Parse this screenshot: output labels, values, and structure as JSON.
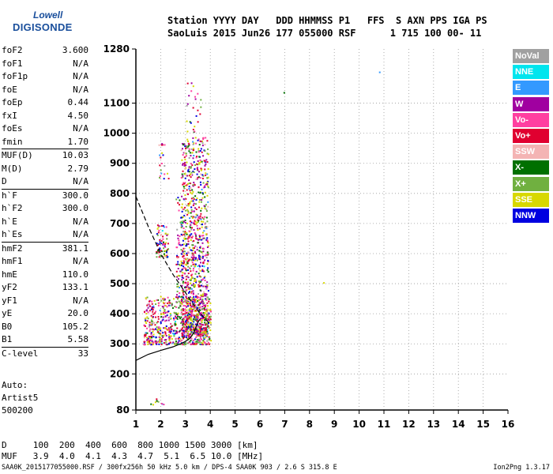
{
  "logo": {
    "line1": "Lowell",
    "line2": "DIGISONDE"
  },
  "header": {
    "line1": "Station YYYY DAY   DDD HHMMSS P1   FFS  S AXN PPS IGA PS",
    "line2": "SaoLuis 2015 Jun26 177 055000 RSF      1 715 100 00- 11"
  },
  "params": [
    {
      "label": "foF2",
      "value": "3.600"
    },
    {
      "label": "foF1",
      "value": "N/A"
    },
    {
      "label": "foF1p",
      "value": "N/A"
    },
    {
      "label": "foE",
      "value": "N/A"
    },
    {
      "label": "foEp",
      "value": "0.44"
    },
    {
      "label": "fxI",
      "value": "4.50"
    },
    {
      "label": "foEs",
      "value": "N/A"
    },
    {
      "label": "fmin",
      "value": "1.70"
    },
    {
      "label": "MUF(D)",
      "value": "10.03"
    },
    {
      "label": "M(D)",
      "value": "2.79"
    },
    {
      "label": "D",
      "value": "N/A"
    },
    {
      "label": "h`F",
      "value": "300.0"
    },
    {
      "label": "h`F2",
      "value": "300.0"
    },
    {
      "label": "h`E",
      "value": "N/A"
    },
    {
      "label": "h`Es",
      "value": "N/A"
    },
    {
      "label": "hmF2",
      "value": "381.1"
    },
    {
      "label": "hmF1",
      "value": "N/A"
    },
    {
      "label": "hmE",
      "value": "110.0"
    },
    {
      "label": "yF2",
      "value": "133.1"
    },
    {
      "label": "yF1",
      "value": "N/A"
    },
    {
      "label": "yE",
      "value": "20.0"
    },
    {
      "label": "B0",
      "value": "105.2"
    },
    {
      "label": "B1",
      "value": "5.58"
    },
    {
      "label": "C-level",
      "value": "33"
    }
  ],
  "auto": {
    "line1": "Auto:",
    "line2": "Artist5",
    "line3": "500200"
  },
  "legend": [
    {
      "label": "NoVal",
      "color": "#a0a0a0"
    },
    {
      "label": "NNE",
      "color": "#00e5ee"
    },
    {
      "label": "E",
      "color": "#3399ff"
    },
    {
      "label": "W",
      "color": "#a000a0"
    },
    {
      "label": "Vo-",
      "color": "#ff3fa0"
    },
    {
      "label": "Vo+",
      "color": "#e00030"
    },
    {
      "label": "SSW",
      "color": "#f4b4b4"
    },
    {
      "label": "X-",
      "color": "#007000"
    },
    {
      "label": "X+",
      "color": "#70b040"
    },
    {
      "label": "SSE",
      "color": "#d8d800"
    },
    {
      "label": "NNW",
      "color": "#0000e0"
    }
  ],
  "mufblock": {
    "line1": "D     100  200  400  600  800 1000 1500 3000 [km]",
    "line2": "MUF   3.9  4.0  4.1  4.3  4.7  5.1  6.5 10.0 [MHz]"
  },
  "footer": "SAA0K_2015177055000.RSF / 300fx256h 50 kHz 5.0 km / DPS-4 SAA0K 903 / 2.6 S 315.8 E",
  "version": "Ion2Png 1.3.17",
  "chart_data": {
    "type": "scatter",
    "xlim": [
      1,
      16
    ],
    "ylim": [
      80,
      1280
    ],
    "x_ticks": [
      1,
      2,
      3,
      4,
      5,
      6,
      7,
      8,
      9,
      10,
      11,
      12,
      13,
      14,
      15,
      16
    ],
    "y_ticks": [
      80,
      200,
      300,
      400,
      500,
      600,
      700,
      800,
      900,
      1000,
      1100,
      1280
    ],
    "grid": true,
    "profile_curve": {
      "x": [
        1.0,
        1.5,
        2.0,
        2.5,
        2.8,
        3.0,
        3.2,
        3.35,
        3.45,
        3.52,
        3.58,
        3.6
      ],
      "y": [
        245,
        265,
        278,
        290,
        300,
        308,
        320,
        340,
        362,
        375,
        381,
        381
      ]
    },
    "muf_curve": {
      "x": [
        1.0,
        1.5,
        2.0,
        2.5,
        3.0,
        3.5,
        4.0
      ],
      "y": [
        790,
        690,
        600,
        530,
        470,
        410,
        365
      ]
    },
    "scatter_clusters": [
      {
        "x": [
          1.3,
          4.0
        ],
        "y": [
          300,
          460
        ],
        "n": 700
      },
      {
        "x": [
          2.8,
          3.9
        ],
        "y": [
          330,
          990
        ],
        "n": 900
      },
      {
        "x": [
          1.8,
          2.3
        ],
        "y": [
          590,
          700
        ],
        "n": 70
      },
      {
        "x": [
          2.6,
          3.4
        ],
        "y": [
          440,
          820
        ],
        "n": 160
      },
      {
        "x": [
          1.9,
          2.3
        ],
        "y": [
          850,
          970
        ],
        "n": 20
      },
      {
        "x": [
          3.0,
          3.6
        ],
        "y": [
          1000,
          1180
        ],
        "n": 25
      },
      {
        "x": [
          1.4,
          2.1
        ],
        "y": [
          100,
          120
        ],
        "n": 10
      }
    ],
    "isolated_points": [
      {
        "x": 6.95,
        "y": 1137,
        "color": "#007000"
      },
      {
        "x": 10.8,
        "y": 1205,
        "color": "#3399ff"
      },
      {
        "x": 8.55,
        "y": 505,
        "color": "#d8d800"
      }
    ]
  }
}
